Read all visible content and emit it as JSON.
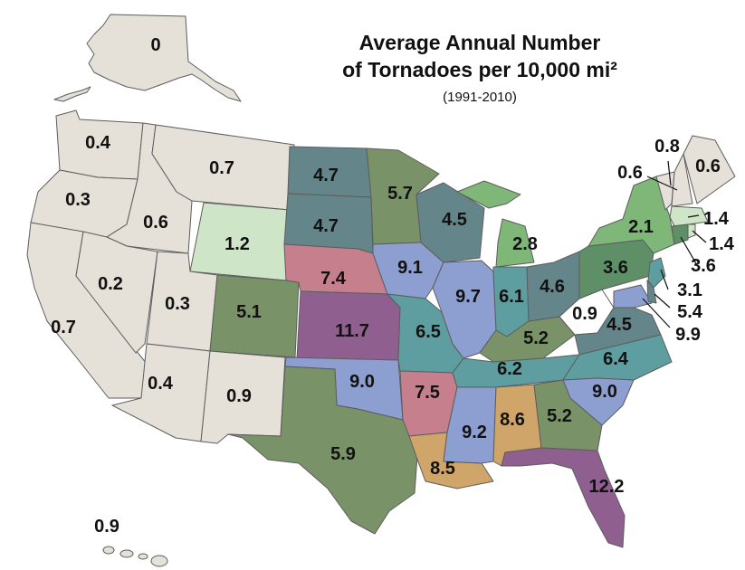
{
  "title": {
    "line1": "Average Annual Number",
    "line2": "of Tornadoes per 10,000 mi²"
  },
  "subtitle": "(1991-2010)",
  "colors": {
    "band_0_1": "#e6e1d8",
    "band_1_2": "#cfe5c8",
    "band_2_3": "#7fb779",
    "band_3_4": "#5f8f66",
    "band_4_5": "#64858a",
    "band_5_6": "#7a9268",
    "band_6_7": "#5e9ea0",
    "band_7_8": "#c67f8d",
    "band_8_9": "#cfa56a",
    "band_9_10": "#8d9fd0",
    "band_10_plus": "#8f5f8f"
  },
  "states": {
    "AK": "0",
    "HI": "0.9",
    "WA": "0.4",
    "OR": "0.3",
    "CA": "0.7",
    "ID": "0.6",
    "NV": "0.2",
    "MT": "0.7",
    "WY": "1.2",
    "UT": "0.3",
    "AZ": "0.4",
    "CO": "5.1",
    "NM": "0.9",
    "ND": "4.7",
    "SD": "4.7",
    "NE": "7.4",
    "KS": "11.7",
    "OK": "9.0",
    "TX": "5.9",
    "MN": "5.7",
    "IA": "9.1",
    "MO": "6.5",
    "AR": "7.5",
    "LA": "8.5",
    "WI": "4.5",
    "IL": "9.7",
    "MS": "9.2",
    "MI": "2.8",
    "IN": "6.1",
    "KY": "5.2",
    "TN": "6.2",
    "AL": "8.6",
    "OH": "4.6",
    "WV": "0.9",
    "VA": "4.5",
    "NC": "6.4",
    "SC": "9.0",
    "GA": "5.2",
    "FL": "12.2",
    "PA": "3.6",
    "NY": "2.1",
    "VT": "0.8",
    "NH": "0.6",
    "ME": "0.6",
    "MA": "1.4",
    "RI": "1.4",
    "CT": "3.6",
    "NJ": "3.1",
    "DE": "5.4",
    "MD": "9.9"
  }
}
